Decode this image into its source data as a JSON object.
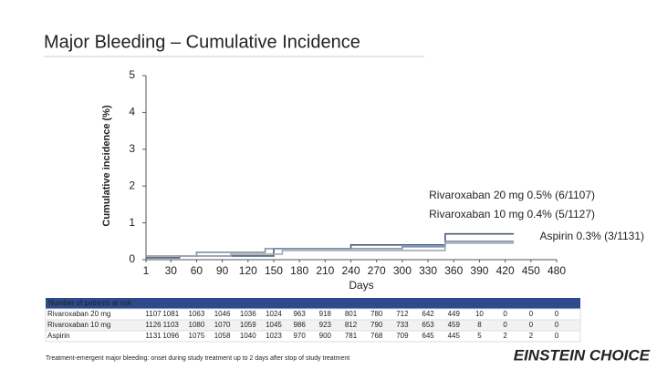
{
  "chart_data": {
    "type": "step",
    "title": "Major Bleeding – Cumulative Incidence",
    "ylabel": "Cumulative incidence (%)",
    "xlabel": "Days",
    "xlim": [
      1,
      480
    ],
    "xticks": [
      1,
      30,
      60,
      90,
      120,
      150,
      180,
      210,
      240,
      270,
      300,
      330,
      360,
      390,
      420,
      450,
      480
    ],
    "ylim": [
      0,
      5
    ],
    "yticks": [
      0,
      1,
      2,
      3,
      4,
      5
    ],
    "series": [
      {
        "name": "Rivaroxaban 20 mg",
        "color": "#4a5a7a",
        "x": [
          1,
          40,
          150,
          240,
          350,
          430
        ],
        "values": [
          0.05,
          0.1,
          0.3,
          0.4,
          0.7,
          0.7
        ]
      },
      {
        "name": "Rivaroxaban 10 mg",
        "color": "#7f8fa6",
        "x": [
          1,
          60,
          140,
          300,
          350,
          430
        ],
        "values": [
          0.1,
          0.2,
          0.3,
          0.35,
          0.5,
          0.5
        ]
      },
      {
        "name": "Aspirin",
        "color": "#a4a9b0",
        "x": [
          1,
          100,
          160,
          350,
          430
        ],
        "values": [
          0.1,
          0.15,
          0.25,
          0.45,
          0.45
        ]
      }
    ],
    "annotations": [
      "Rivaroxaban 20 mg 0.5% (6/1107)",
      "Rivaroxaban 10 mg 0.4% (5/1127)",
      "Aspirin 0.3% (3/1131)"
    ]
  },
  "risk_table": {
    "title": "Number of patients at risk",
    "rows": [
      {
        "label": "Rivaroxaban 20 mg",
        "values": [
          "1107",
          "1081",
          "1063",
          "1046",
          "1036",
          "1024",
          "963",
          "918",
          "801",
          "780",
          "712",
          "642",
          "449",
          "10",
          "0",
          "0",
          "0"
        ]
      },
      {
        "label": "Rivaroxaban 10 mg",
        "values": [
          "1126",
          "1103",
          "1080",
          "1070",
          "1059",
          "1045",
          "986",
          "923",
          "812",
          "790",
          "733",
          "653",
          "459",
          "8",
          "0",
          "0",
          "0"
        ]
      },
      {
        "label": "Aspirin",
        "values": [
          "1131",
          "1096",
          "1075",
          "1058",
          "1040",
          "1023",
          "970",
          "900",
          "781",
          "768",
          "709",
          "645",
          "445",
          "5",
          "2",
          "2",
          "0"
        ]
      }
    ]
  },
  "footnote": "Treatment-emergent major bleeding: onset during study treatment up to 2 days after stop of study treatment",
  "logo": "EINSTEIN CHOICE"
}
